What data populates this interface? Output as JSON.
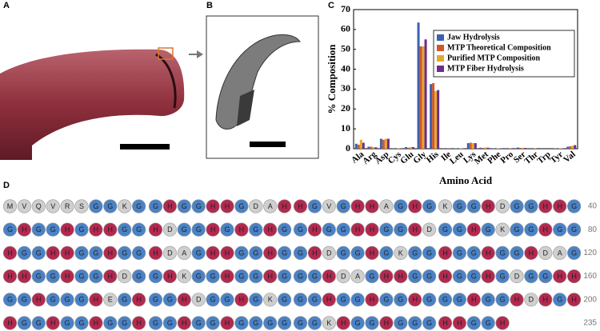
{
  "panels": {
    "a": "A",
    "b": "B",
    "d": "D"
  },
  "chart_data": {
    "type": "bar",
    "panel_label": "C",
    "y_label": "% Composition",
    "x_label": "Amino Acid",
    "categories": [
      "Ala",
      "Arg",
      "Asp",
      "Cys",
      "Glu",
      "Gly",
      "His",
      "Ile",
      "Leu",
      "Lys",
      "Met",
      "Phe",
      "Pro",
      "Ser",
      "Thr",
      "Trp",
      "Tyr",
      "Val"
    ],
    "series": [
      {
        "name": "Jaw Hydrolysis",
        "color": "#3b62b0",
        "values": [
          2.5,
          1.0,
          5.0,
          0.1,
          0.8,
          63.5,
          32.5,
          0.1,
          0.2,
          2.8,
          0.5,
          0.2,
          0.3,
          0.6,
          0.3,
          0,
          0.2,
          1.0
        ]
      },
      {
        "name": "MTP Theoretical Composition",
        "color": "#d2572a",
        "values": [
          2.0,
          1.0,
          4.5,
          0,
          0.5,
          51.5,
          33,
          0,
          0,
          3.0,
          0.4,
          0,
          0,
          0.4,
          0,
          0,
          0,
          1.2
        ]
      },
      {
        "name": "Purified MTP Composition",
        "color": "#e3a92c",
        "values": [
          4.5,
          0.8,
          5.0,
          0.2,
          0.8,
          51.5,
          29,
          0.1,
          0.2,
          2.8,
          0.6,
          0.2,
          0.3,
          0.5,
          0.3,
          0,
          0.2,
          1.5
        ]
      },
      {
        "name": "MTP Fiber Hydrolysis",
        "color": "#6b2b8e",
        "values": [
          3.0,
          0.7,
          5.0,
          0.1,
          0.8,
          55,
          29.5,
          0.1,
          0.2,
          2.8,
          0.5,
          0.2,
          0.3,
          0.4,
          0.3,
          0,
          0.2,
          1.8
        ]
      }
    ],
    "ylim": [
      0,
      70
    ],
    "yticks": [
      0,
      10,
      20,
      30,
      40,
      50,
      60,
      70
    ],
    "legend": "upper right"
  },
  "sequence": {
    "rows": [
      {
        "groups": [
          [
            "M",
            "V",
            "Q",
            "V",
            "R",
            "S",
            "G",
            "G",
            "K",
            "G"
          ],
          [
            "G",
            "H",
            "G",
            "G",
            "H",
            "H",
            "G",
            "D",
            "A",
            "H"
          ],
          [
            "H",
            "G",
            "V",
            "G",
            "H",
            "H",
            "A",
            "G",
            "H",
            "G"
          ],
          [
            "K",
            "G",
            "G",
            "H",
            "D",
            "G",
            "G",
            "H",
            "H",
            "G"
          ]
        ],
        "end": 40
      },
      {
        "groups": [
          [
            "G",
            "H",
            "G",
            "G",
            "H",
            "G",
            "H",
            "H",
            "G",
            "G"
          ],
          [
            "H",
            "D",
            "G",
            "G",
            "H",
            "G",
            "H",
            "G",
            "H",
            "G"
          ],
          [
            "G",
            "H",
            "G",
            "G",
            "H",
            "H",
            "G",
            "G",
            "H",
            "D"
          ],
          [
            "G",
            "G",
            "H",
            "G",
            "K",
            "G",
            "G",
            "H",
            "G",
            "G"
          ]
        ],
        "end": 80
      },
      {
        "groups": [
          [
            "H",
            "G",
            "G",
            "H",
            "H",
            "G",
            "G",
            "H",
            "G",
            "G"
          ],
          [
            "H",
            "D",
            "A",
            "G",
            "H",
            "H",
            "G",
            "G",
            "H",
            "G"
          ],
          [
            "G",
            "H",
            "D",
            "G",
            "G",
            "H",
            "G",
            "K",
            "G",
            "G"
          ],
          [
            "H",
            "G",
            "G",
            "H",
            "G",
            "G",
            "H",
            "D",
            "A",
            "G"
          ]
        ],
        "end": 120
      },
      {
        "groups": [
          [
            "H",
            "H",
            "G",
            "G",
            "H",
            "G",
            "G",
            "H",
            "D",
            "G"
          ],
          [
            "G",
            "H",
            "K",
            "G",
            "G",
            "H",
            "G",
            "G",
            "H",
            "G"
          ],
          [
            "G",
            "G",
            "H",
            "D",
            "A",
            "G",
            "H",
            "H",
            "G",
            "G"
          ],
          [
            "H",
            "G",
            "G",
            "H",
            "G",
            "D",
            "G",
            "G",
            "H",
            "H"
          ]
        ],
        "end": 160
      },
      {
        "groups": [
          [
            "G",
            "G",
            "H",
            "G",
            "G",
            "G",
            "H",
            "E",
            "G",
            "H"
          ],
          [
            "G",
            "G",
            "H",
            "D",
            "G",
            "G",
            "H",
            "G",
            "K",
            "G"
          ],
          [
            "G",
            "G",
            "H",
            "G",
            "G",
            "H",
            "G",
            "G",
            "H",
            "G"
          ],
          [
            "G",
            "G",
            "H",
            "G",
            "G",
            "H",
            "D",
            "H",
            "G",
            "H"
          ]
        ],
        "end": 200
      },
      {
        "groups": [
          [
            "H",
            "G",
            "G",
            "H",
            "G",
            "G",
            "H",
            "G",
            "G",
            "H"
          ],
          [
            "G",
            "G",
            "H",
            "G",
            "G",
            "H",
            "G",
            "G",
            "G",
            "G"
          ],
          [
            "G",
            "G",
            "K",
            "H",
            "G",
            "G",
            "H",
            "G",
            "G",
            "G"
          ],
          [
            "H",
            "H",
            "G",
            "G",
            "H"
          ]
        ],
        "end": 235
      }
    ]
  }
}
